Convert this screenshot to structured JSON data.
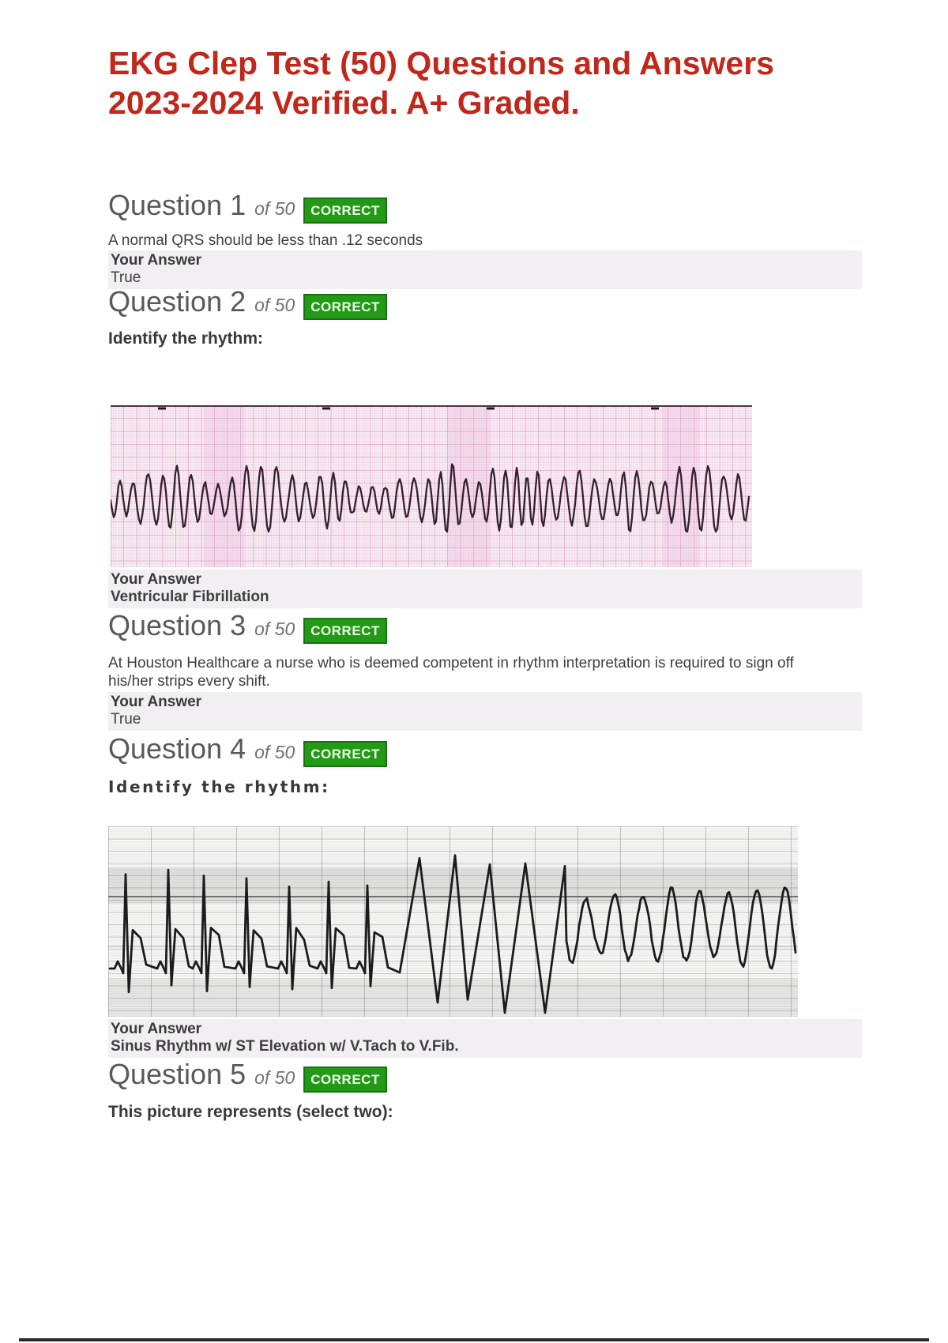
{
  "page": {
    "title_line1": "EKG Clep Test (50) Questions and Answers",
    "title_line2": "2023-2024 Verified. A+ Graded."
  },
  "labels": {
    "your_answer": "Your Answer"
  },
  "images": {
    "ekg1": "pink-grid-ekg-strip-ventricular-fibrillation",
    "ekg2": "grayscale-ekg-strip-sinus-st-elevation-to-vtach-vfib"
  },
  "questions": [
    {
      "number": "Question 1",
      "of": "of 50",
      "status": "CORRECT",
      "text": "A normal QRS should be less than .12 seconds",
      "answer": "True"
    },
    {
      "number": "Question 2",
      "of": "of 50",
      "status": "CORRECT",
      "prompt": "Identify the rhythm:",
      "answer": "Ventricular Fibrillation"
    },
    {
      "number": "Question 3",
      "of": "of 50",
      "status": "CORRECT",
      "text": "At Houston Healthcare a nurse who is deemed competent in rhythm interpretation is required to sign off his/her strips every shift.",
      "answer": "True"
    },
    {
      "number": "Question 4",
      "of": "of 50",
      "status": "CORRECT",
      "prompt": "Identify the rhythm:",
      "answer": "Sinus Rhythm w/ ST Elevation w/ V.Tach to V.Fib."
    },
    {
      "number": "Question 5",
      "of": "of 50",
      "status": "CORRECT",
      "prompt": "This picture represents (select two):"
    }
  ]
}
